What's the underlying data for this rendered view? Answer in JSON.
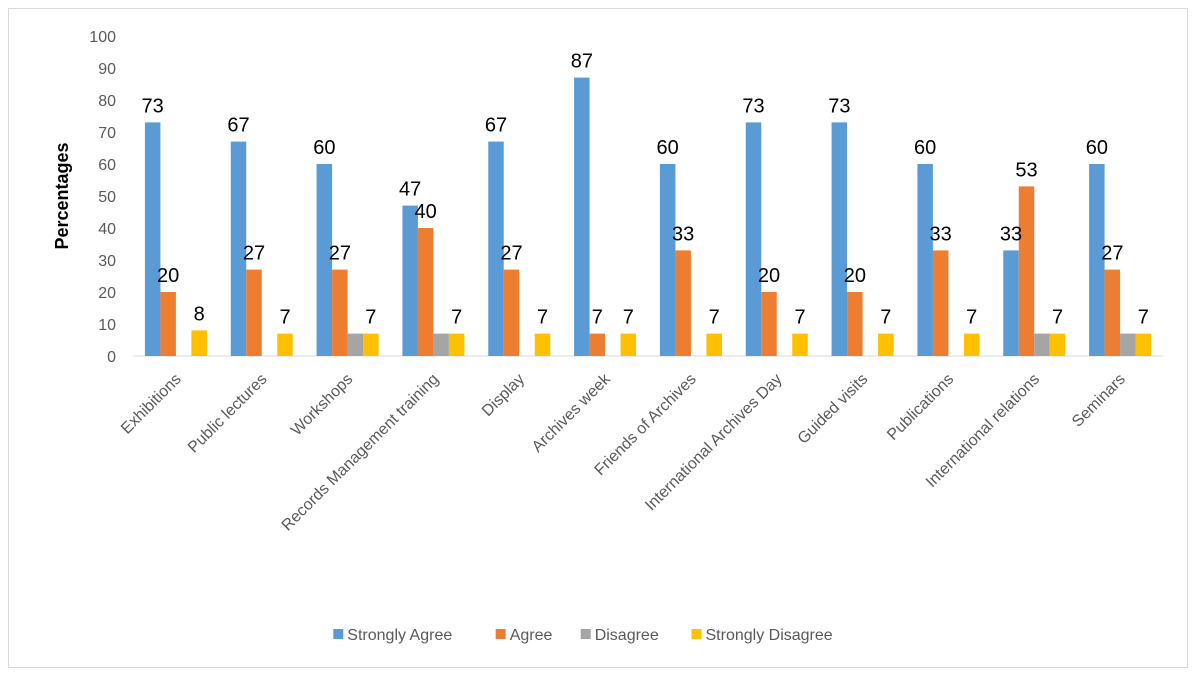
{
  "chart_data": {
    "type": "bar",
    "title": "",
    "xlabel": "",
    "ylabel": "Percentages",
    "ylim": [
      0,
      100
    ],
    "yticks": [
      0,
      10,
      20,
      30,
      40,
      50,
      60,
      70,
      80,
      90,
      100
    ],
    "grid": false,
    "legend_position": "bottom",
    "categories": [
      "Exhibitions",
      "Public lectures",
      "Workshops",
      "Records Management training",
      "Display",
      "Archives week",
      "Friends of Archives",
      "International Archives Day",
      "Guided visits",
      "Publications",
      "International relations",
      "Seminars"
    ],
    "series": [
      {
        "name": "Strongly Agree",
        "color": "#5b9bd5",
        "values": [
          73,
          67,
          60,
          47,
          67,
          87,
          60,
          73,
          73,
          60,
          33,
          60
        ]
      },
      {
        "name": "Agree",
        "color": "#ed7d31",
        "values": [
          20,
          27,
          27,
          40,
          27,
          7,
          33,
          20,
          20,
          33,
          53,
          27
        ]
      },
      {
        "name": "Disagree",
        "color": "#a5a5a5",
        "values": [
          0,
          0,
          7,
          7,
          0,
          0,
          0,
          0,
          0,
          0,
          7,
          7
        ]
      },
      {
        "name": "Strongly Disagree",
        "color": "#ffc000",
        "values": [
          8,
          7,
          7,
          7,
          7,
          7,
          7,
          7,
          7,
          7,
          7,
          7
        ]
      }
    ],
    "data_labels": [
      {
        "category": 0,
        "series": 0,
        "text": "73"
      },
      {
        "category": 0,
        "series": 1,
        "text": "20"
      },
      {
        "category": 0,
        "series": 3,
        "text": "8"
      },
      {
        "category": 1,
        "series": 0,
        "text": "67"
      },
      {
        "category": 1,
        "series": 1,
        "text": "27"
      },
      {
        "category": 1,
        "series": 3,
        "text": "7"
      },
      {
        "category": 2,
        "series": 0,
        "text": "60"
      },
      {
        "category": 2,
        "series": 1,
        "text": "27"
      },
      {
        "category": 2,
        "series": 3,
        "text": "7"
      },
      {
        "category": 3,
        "series": 0,
        "text": "47"
      },
      {
        "category": 3,
        "series": 1,
        "text": "40"
      },
      {
        "category": 3,
        "series": 3,
        "text": "7"
      },
      {
        "category": 4,
        "series": 0,
        "text": "67"
      },
      {
        "category": 4,
        "series": 1,
        "text": "27"
      },
      {
        "category": 4,
        "series": 3,
        "text": "7"
      },
      {
        "category": 5,
        "series": 0,
        "text": "87"
      },
      {
        "category": 5,
        "series": 1,
        "text": "7"
      },
      {
        "category": 5,
        "series": 3,
        "text": "7"
      },
      {
        "category": 6,
        "series": 0,
        "text": "60"
      },
      {
        "category": 6,
        "series": 1,
        "text": "33"
      },
      {
        "category": 6,
        "series": 3,
        "text": "7"
      },
      {
        "category": 7,
        "series": 0,
        "text": "73"
      },
      {
        "category": 7,
        "series": 1,
        "text": "20"
      },
      {
        "category": 7,
        "series": 3,
        "text": "7"
      },
      {
        "category": 8,
        "series": 0,
        "text": "73"
      },
      {
        "category": 8,
        "series": 1,
        "text": "20"
      },
      {
        "category": 8,
        "series": 3,
        "text": "7"
      },
      {
        "category": 9,
        "series": 0,
        "text": "60"
      },
      {
        "category": 9,
        "series": 1,
        "text": "33"
      },
      {
        "category": 9,
        "series": 3,
        "text": "7"
      },
      {
        "category": 10,
        "series": 0,
        "text": "33"
      },
      {
        "category": 10,
        "series": 1,
        "text": "53"
      },
      {
        "category": 10,
        "series": 3,
        "text": "7"
      },
      {
        "category": 11,
        "series": 0,
        "text": "60"
      },
      {
        "category": 11,
        "series": 1,
        "text": "27"
      },
      {
        "category": 11,
        "series": 3,
        "text": "7"
      }
    ]
  }
}
